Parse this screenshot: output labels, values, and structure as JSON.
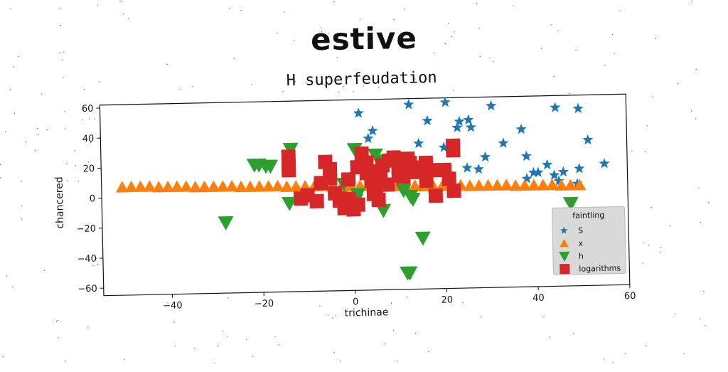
{
  "suptitle": "estive",
  "chart_data": {
    "type": "scatter",
    "title": "H superfeudation",
    "xlabel": "trichinae",
    "ylabel": "chancered",
    "xlim": [
      -55,
      60
    ],
    "ylim": [
      -65,
      62
    ],
    "xticks": [
      -40,
      -20,
      0,
      20,
      40,
      60
    ],
    "yticks": [
      -60,
      -40,
      -20,
      0,
      20,
      40,
      60
    ],
    "grid": false,
    "legend": {
      "title": "faintling",
      "position": "lower-right"
    },
    "series": [
      {
        "name": "S",
        "marker": "star",
        "color": "#1f77b4",
        "points": [
          [
            1.5,
            53
          ],
          [
            12.5,
            58
          ],
          [
            20.5,
            59
          ],
          [
            16.5,
            47
          ],
          [
            23.5,
            46
          ],
          [
            25.5,
            47
          ],
          [
            23,
            42
          ],
          [
            26,
            42
          ],
          [
            4.5,
            41
          ],
          [
            3.5,
            36
          ],
          [
            14.5,
            32
          ],
          [
            20,
            29
          ],
          [
            30.5,
            56
          ],
          [
            37,
            40
          ],
          [
            33,
            31
          ],
          [
            38,
            22
          ],
          [
            29,
            22
          ],
          [
            25,
            15
          ],
          [
            27.5,
            14
          ],
          [
            42.5,
            16
          ],
          [
            39.5,
            11
          ],
          [
            40.5,
            11
          ],
          [
            38,
            7
          ],
          [
            46,
            11
          ],
          [
            44,
            9
          ],
          [
            44.5,
            54
          ],
          [
            49.5,
            53
          ],
          [
            51.5,
            32
          ],
          [
            49.5,
            13
          ],
          [
            55,
            16
          ],
          [
            45,
            5
          ],
          [
            49,
            3
          ],
          [
            21,
            8
          ]
        ]
      },
      {
        "name": "x",
        "marker": "triangle-up",
        "color": "#ff7f0e",
        "points": [
          [
            -50.5,
            7
          ],
          [
            -48.5,
            7
          ],
          [
            -46.5,
            7
          ],
          [
            -44.5,
            7
          ],
          [
            -42.5,
            6.5
          ],
          [
            -40.5,
            6.5
          ],
          [
            -38.5,
            6.5
          ],
          [
            -36.5,
            6.5
          ],
          [
            -34.5,
            6
          ],
          [
            -32.5,
            6
          ],
          [
            -30.5,
            6
          ],
          [
            -28.5,
            6
          ],
          [
            -26.5,
            6
          ],
          [
            -24.5,
            5.5
          ],
          [
            -22.5,
            5.5
          ],
          [
            -20.5,
            5.5
          ],
          [
            -18.5,
            5.5
          ],
          [
            -16.5,
            5.5
          ],
          [
            -14.5,
            5
          ],
          [
            -12.5,
            5
          ],
          [
            -10.5,
            5
          ],
          [
            -8.5,
            5
          ],
          [
            -6.5,
            5
          ],
          [
            -4.5,
            4.5
          ],
          [
            -2.5,
            4.5
          ],
          [
            -0.5,
            4.5
          ],
          [
            1.5,
            4.5
          ],
          [
            3.5,
            4.5
          ],
          [
            5.5,
            4
          ],
          [
            7.5,
            4
          ],
          [
            9.5,
            4
          ],
          [
            11.5,
            4
          ],
          [
            13.5,
            4
          ],
          [
            15.5,
            3.5
          ],
          [
            17.5,
            3.5
          ],
          [
            19.5,
            3.5
          ],
          [
            21.5,
            3.5
          ],
          [
            23.5,
            3.5
          ],
          [
            25.5,
            3
          ],
          [
            27.5,
            3
          ],
          [
            29.5,
            3
          ],
          [
            31.5,
            3
          ],
          [
            33.5,
            3
          ],
          [
            35.5,
            2.5
          ],
          [
            37.5,
            2.5
          ],
          [
            39.5,
            2.5
          ],
          [
            41.5,
            2.5
          ],
          [
            43.5,
            2.5
          ],
          [
            45.5,
            2
          ],
          [
            47.5,
            2
          ],
          [
            49.5,
            2
          ]
        ]
      },
      {
        "name": "h",
        "marker": "triangle-down",
        "color": "#2ca02c",
        "points": [
          [
            -21.5,
            20
          ],
          [
            -20.5,
            20
          ],
          [
            -19,
            19
          ],
          [
            -18,
            19
          ],
          [
            -13.5,
            30
          ],
          [
            -14,
            -6
          ],
          [
            -28,
            -18
          ],
          [
            -2,
            6
          ],
          [
            0.5,
            29
          ],
          [
            0.5,
            -5
          ],
          [
            5,
            25
          ],
          [
            6.5,
            -12
          ],
          [
            6,
            21
          ],
          [
            11,
            1
          ],
          [
            12.5,
            -3
          ],
          [
            13,
            -5
          ],
          [
            11.5,
            -54
          ],
          [
            12,
            -54
          ],
          [
            15,
            -31
          ],
          [
            47.5,
            -10
          ],
          [
            1,
            -1
          ],
          [
            -3,
            -3
          ]
        ]
      },
      {
        "name": "logarithms",
        "marker": "square",
        "color": "#d62728",
        "points": [
          [
            -14,
            25
          ],
          [
            -14,
            19
          ],
          [
            -14,
            16
          ],
          [
            -11.5,
            -3
          ],
          [
            -8,
            -5
          ],
          [
            -6,
            21
          ],
          [
            -7,
            7
          ],
          [
            -5,
            10
          ],
          [
            -5,
            16
          ],
          [
            -4,
            0
          ],
          [
            -3,
            -5
          ],
          [
            -2,
            -10
          ],
          [
            -1,
            9
          ],
          [
            0,
            -11
          ],
          [
            1,
            17
          ],
          [
            2,
            26
          ],
          [
            3,
            20
          ],
          [
            4,
            14
          ],
          [
            4,
            8
          ],
          [
            4.5,
            -1
          ],
          [
            5,
            3
          ],
          [
            5.5,
            6
          ],
          [
            6,
            12
          ],
          [
            6.5,
            18
          ],
          [
            8,
            21
          ],
          [
            9,
            23
          ],
          [
            10,
            16
          ],
          [
            11,
            10
          ],
          [
            12,
            22
          ],
          [
            12.5,
            19
          ],
          [
            13,
            13
          ],
          [
            14,
            15
          ],
          [
            15,
            16
          ],
          [
            16,
            19
          ],
          [
            16,
            7
          ],
          [
            17,
            14
          ],
          [
            18,
            -3
          ],
          [
            20,
            14
          ],
          [
            21,
            8
          ],
          [
            22,
            27
          ],
          [
            22,
            30
          ],
          [
            22,
            0
          ],
          [
            -10,
            -1
          ],
          [
            1,
            -8
          ],
          [
            -1,
            -4
          ],
          [
            3,
            13
          ],
          [
            5.5,
            -5
          ],
          [
            7.5,
            5
          ],
          [
            10,
            11
          ]
        ]
      }
    ]
  }
}
